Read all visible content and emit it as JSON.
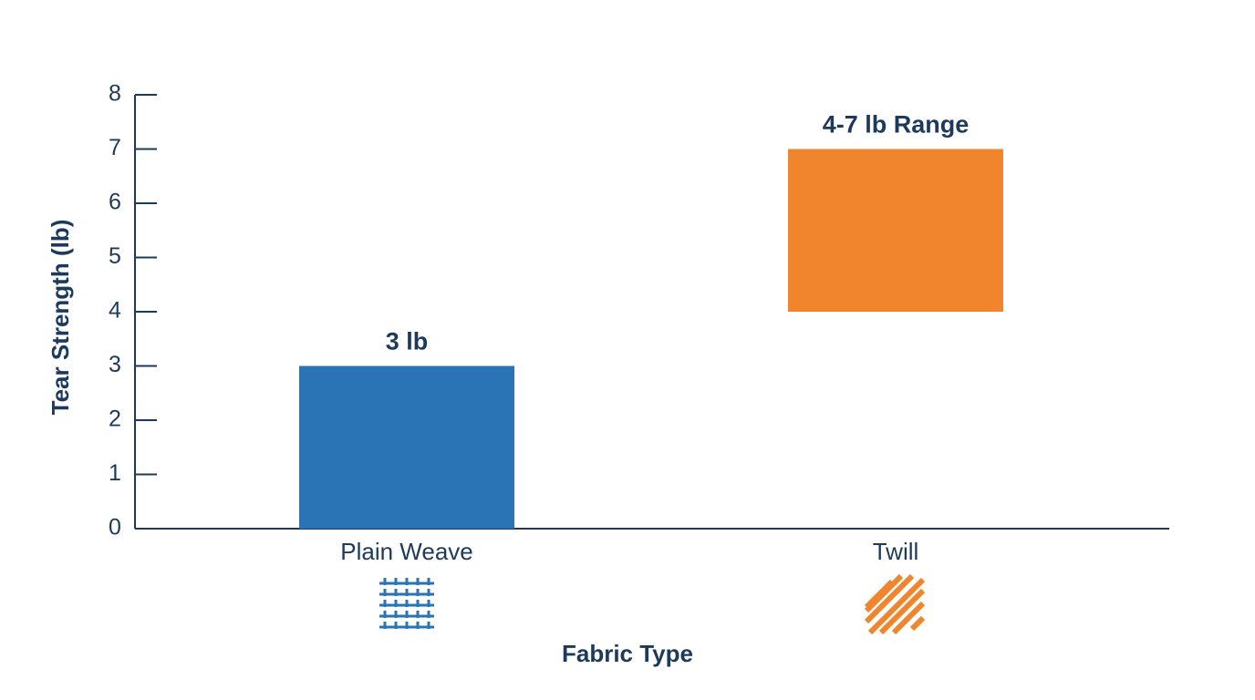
{
  "chart_data": {
    "type": "floating_bar",
    "x_label": "Fabric Type",
    "y_label": "Tear Strength (lb)",
    "categories": [
      "Plain Weave",
      "Twill"
    ],
    "low": [
      0,
      4
    ],
    "high": [
      3,
      7
    ],
    "value_labels": [
      "3 lb",
      "4-7 lb Range"
    ],
    "colors": [
      "#2a74b5",
      "#f0852d"
    ],
    "ylim": [
      0,
      8
    ],
    "yticks": [
      0,
      1,
      2,
      3,
      4,
      5,
      6,
      7,
      8
    ],
    "axis_color": "#1d3a5c",
    "grid": false
  }
}
